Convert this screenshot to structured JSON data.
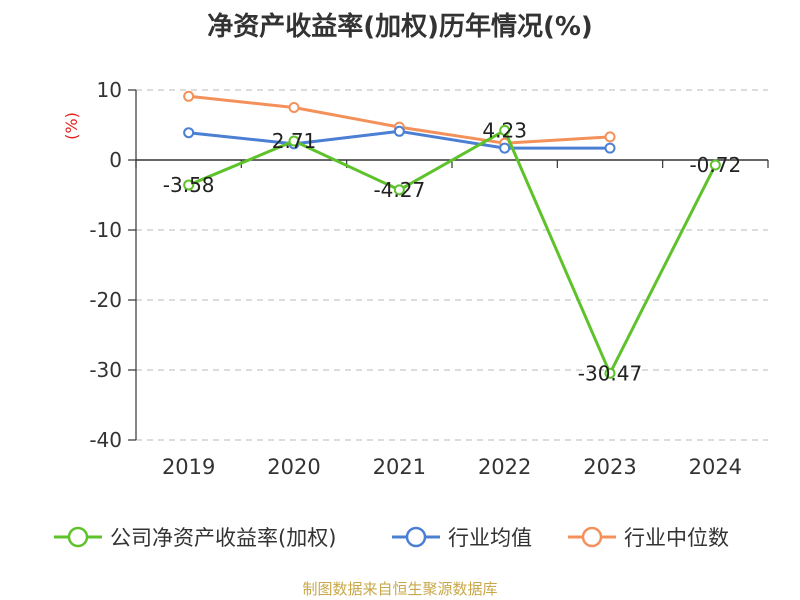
{
  "chart_data": {
    "type": "line",
    "title": "净资产收益率(加权)历年情况(%)",
    "ylabel": "(%)",
    "categories": [
      "2019",
      "2020",
      "2021",
      "2022",
      "2023",
      "2024"
    ],
    "ylim": [
      -40,
      10
    ],
    "yticks": [
      10,
      0,
      -10,
      -20,
      -30,
      -40
    ],
    "grid": true,
    "legend_position": "bottom",
    "series": [
      {
        "name": "公司净资产收益率(加权)",
        "color": "#5ec22b",
        "values": [
          -3.58,
          2.71,
          -4.27,
          4.23,
          -30.47,
          -0.72
        ],
        "labels": [
          "-3.58",
          "2.71",
          "-4.27",
          "4.23",
          "-30.47",
          "-0.72"
        ]
      },
      {
        "name": "行业均值",
        "color": "#4a7fd4",
        "values": [
          3.9,
          2.3,
          4.1,
          1.7,
          1.7,
          null
        ]
      },
      {
        "name": "行业中位数",
        "color": "#f4915a",
        "values": [
          9.1,
          7.5,
          4.7,
          2.4,
          3.3,
          null
        ]
      }
    ],
    "source_note": "制图数据来自恒生聚源数据库"
  }
}
